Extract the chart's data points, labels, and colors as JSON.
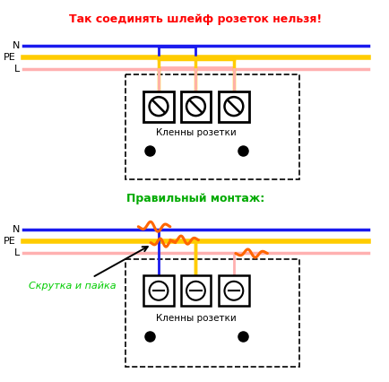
{
  "title_top": "Так соединять шлейф розеток нельзя!",
  "title_bottom": "Правильный монтаж:",
  "label_terminals": "Кленны розетки",
  "label_screwjoint": "Скрутка и пайка",
  "bg_color": "#ffffff",
  "wire_N_color": "#1a1aee",
  "wire_PE_color": "#ffcc00",
  "wire_L_color": "#ffb0b0",
  "join_color": "#ff6600",
  "title_top_color": "#ff0000",
  "title_bottom_color": "#00aa00",
  "label_screwjoint_color": "#00cc00",
  "fig_width": 4.34,
  "fig_height": 4.26,
  "dpi": 100
}
